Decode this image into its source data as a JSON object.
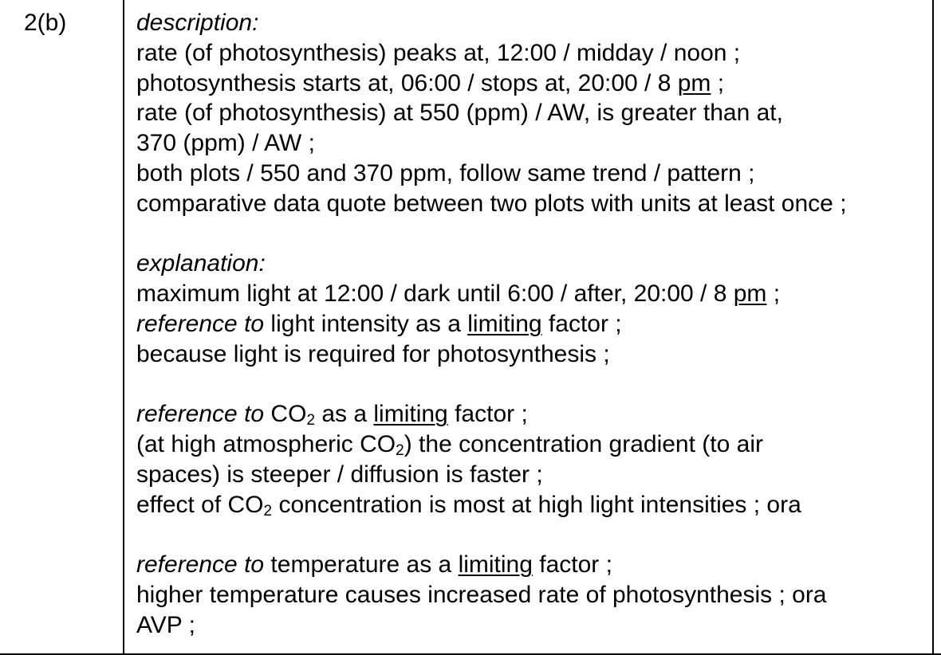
{
  "question_number": "2(b)",
  "description": {
    "heading": "description:",
    "l1": "rate (of photosynthesis) peaks at, 12:00 / midday / noon ;",
    "l2a": "photosynthesis starts at, 06:00 / stops at, 20:00 / 8 ",
    "l2u": "pm",
    "l2b": " ;",
    "l3": "rate (of photosynthesis) at 550 (ppm) / AW, is greater than at,",
    "l4": "370 (ppm) / AW ;",
    "l5": "both plots / 550 and 370 ppm, follow same trend / pattern ;",
    "l6": "comparative data quote between two plots with units at least once ;"
  },
  "explanation": {
    "heading": "explanation:",
    "l1a": "maximum light at 12:00 / dark until 6:00 / after, 20:00 / 8 ",
    "l1u": "pm",
    "l1b": " ;",
    "l2i": "reference to",
    "l2a": " light intensity as a ",
    "l2u": "limiting",
    "l2b": " factor ;",
    "l3": "because light is required for photosynthesis ;"
  },
  "co2": {
    "l1i": "reference to",
    "l1a": " CO",
    "l1s": "2",
    "l1b": " as a ",
    "l1u": "limiting",
    "l1c": " factor ;",
    "l2a": "(at high atmospheric CO",
    "l2s": "2",
    "l2b": ") the concentration gradient (to air",
    "l3": "spaces) is steeper / diffusion is faster ;",
    "l4a": "effect of CO",
    "l4s": "2",
    "l4b": " concentration is most at high light intensities ; ora"
  },
  "temperature": {
    "l1i": "reference to",
    "l1a": " temperature as a ",
    "l1u": "limiting",
    "l1b": " factor ;",
    "l2": "higher temperature causes increased rate of photosynthesis ; ora",
    "l3": "AVP ;"
  }
}
